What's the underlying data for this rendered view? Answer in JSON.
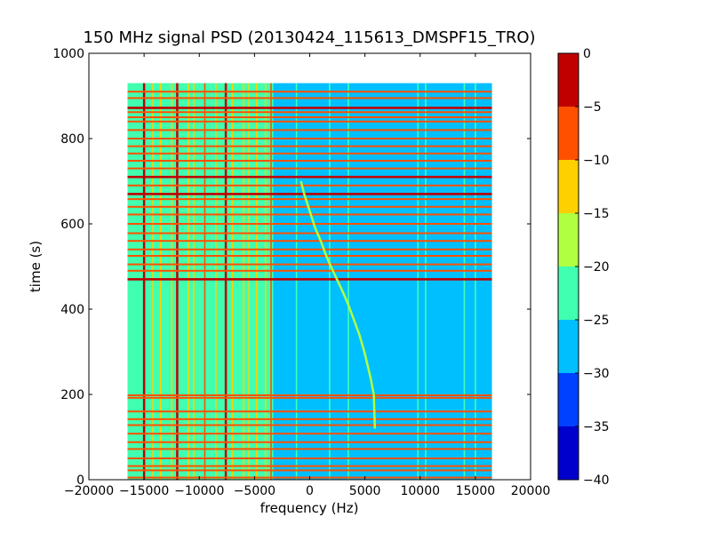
{
  "chart_data": {
    "type": "heatmap",
    "title": "150 MHz signal PSD (20130424_115613_DMSPF15_TRO)",
    "xlabel": "frequency (Hz)",
    "ylabel": "time (s)",
    "xlim": [
      -20000,
      20000
    ],
    "ylim": [
      0,
      1000
    ],
    "x_ticks": [
      -20000,
      -15000,
      -10000,
      -5000,
      0,
      5000,
      10000,
      15000,
      20000
    ],
    "x_tick_labels": [
      "−20000",
      "−15000",
      "−10000",
      "−5000",
      "0",
      "5000",
      "10000",
      "15000",
      "20000"
    ],
    "y_ticks": [
      0,
      200,
      400,
      600,
      800,
      1000
    ],
    "y_tick_labels": [
      "0",
      "200",
      "400",
      "600",
      "800",
      "1000"
    ],
    "data_extent": {
      "x": [
        -16500,
        16500
      ],
      "y": [
        0,
        930
      ]
    },
    "colorbar": {
      "levels": [
        -40,
        -35,
        -30,
        -25,
        -20,
        -15,
        -10,
        -5,
        0
      ],
      "tick_labels": [
        "−40",
        "−35",
        "−30",
        "−25",
        "−20",
        "−15",
        "−10",
        "−5",
        "0"
      ],
      "colors": [
        "#0000cd",
        "#0040ff",
        "#00bfff",
        "#40ffb0",
        "#b0ff40",
        "#ffd000",
        "#ff5000",
        "#c00000"
      ]
    },
    "background_level_low_freq": -22.5,
    "background_level_high_freq": -27.5,
    "boundary_freq": -3300,
    "vertical_lines": [
      {
        "freq": -15000,
        "level": -2
      },
      {
        "freq": -14200,
        "level": -12
      },
      {
        "freq": -13500,
        "level": -12
      },
      {
        "freq": -12500,
        "level": -12
      },
      {
        "freq": -12000,
        "level": -2
      },
      {
        "freq": -11000,
        "level": -12
      },
      {
        "freq": -10500,
        "level": -12
      },
      {
        "freq": -9500,
        "level": -7
      },
      {
        "freq": -8500,
        "level": -12
      },
      {
        "freq": -7600,
        "level": -2
      },
      {
        "freq": -7000,
        "level": -12
      },
      {
        "freq": -6000,
        "level": -12
      },
      {
        "freq": -5500,
        "level": -12
      },
      {
        "freq": -4800,
        "level": -12
      },
      {
        "freq": -4000,
        "level": -12
      },
      {
        "freq": -3500,
        "level": -7
      },
      {
        "freq": -1200,
        "level": -22
      },
      {
        "freq": 1800,
        "level": -22
      },
      {
        "freq": 3500,
        "level": -22
      },
      {
        "freq": 9800,
        "level": -22
      },
      {
        "freq": 10500,
        "level": -22
      },
      {
        "freq": 14000,
        "level": -22
      },
      {
        "freq": 15000,
        "level": -22
      }
    ],
    "horizontal_lines": [
      {
        "time": 5,
        "level": -7
      },
      {
        "time": 22,
        "level": -7
      },
      {
        "time": 32,
        "level": -7
      },
      {
        "time": 50,
        "level": -7
      },
      {
        "time": 72,
        "level": -7
      },
      {
        "time": 88,
        "level": -7
      },
      {
        "time": 108,
        "level": -7
      },
      {
        "time": 128,
        "level": -7
      },
      {
        "time": 142,
        "level": -7
      },
      {
        "time": 160,
        "level": -7
      },
      {
        "time": 192,
        "level": -7
      },
      {
        "time": 198,
        "level": -7
      },
      {
        "time": 470,
        "level": -2
      },
      {
        "time": 490,
        "level": -7
      },
      {
        "time": 505,
        "level": -7
      },
      {
        "time": 525,
        "level": -7
      },
      {
        "time": 540,
        "level": -7
      },
      {
        "time": 560,
        "level": -7
      },
      {
        "time": 578,
        "level": -7
      },
      {
        "time": 600,
        "level": -7
      },
      {
        "time": 622,
        "level": -7
      },
      {
        "time": 640,
        "level": -7
      },
      {
        "time": 658,
        "level": -7
      },
      {
        "time": 670,
        "level": -2
      },
      {
        "time": 690,
        "level": -7
      },
      {
        "time": 710,
        "level": -2
      },
      {
        "time": 730,
        "level": -7
      },
      {
        "time": 748,
        "level": -7
      },
      {
        "time": 765,
        "level": -7
      },
      {
        "time": 782,
        "level": -7
      },
      {
        "time": 800,
        "level": -7
      },
      {
        "time": 820,
        "level": -7
      },
      {
        "time": 840,
        "level": -7
      },
      {
        "time": 850,
        "level": -7
      },
      {
        "time": 862,
        "level": -7
      },
      {
        "time": 872,
        "level": -2
      },
      {
        "time": 895,
        "level": -7
      },
      {
        "time": 910,
        "level": -7
      }
    ],
    "doppler_curve": {
      "level": -17,
      "points": [
        [
          -800,
          700
        ],
        [
          -500,
          670
        ],
        [
          0,
          630
        ],
        [
          500,
          590
        ],
        [
          1000,
          560
        ],
        [
          1500,
          525
        ],
        [
          2000,
          495
        ],
        [
          2500,
          468
        ],
        [
          3000,
          440
        ],
        [
          3500,
          410
        ],
        [
          4000,
          375
        ],
        [
          4500,
          340
        ],
        [
          5000,
          295
        ],
        [
          5500,
          240
        ],
        [
          5800,
          200
        ],
        [
          5900,
          120
        ]
      ]
    }
  }
}
